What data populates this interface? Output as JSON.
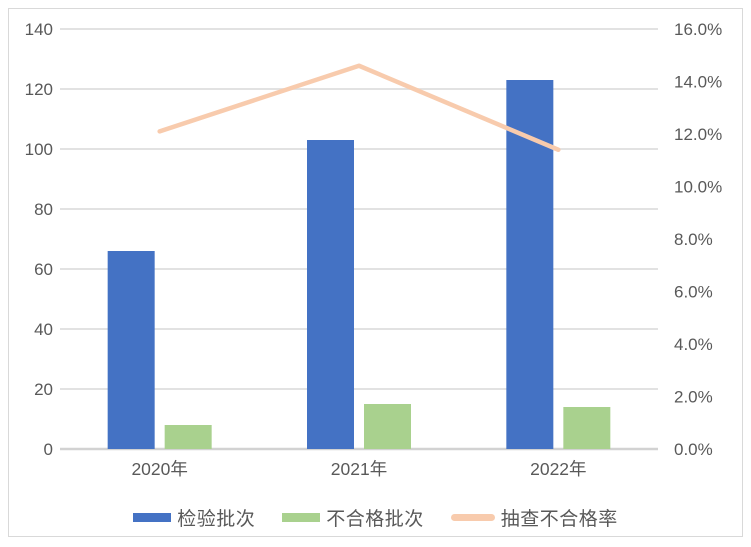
{
  "chart_data": {
    "type": "bar",
    "subtype": "bar-and-line-combo",
    "title": "",
    "xlabel": "",
    "ylabel": "",
    "categories": [
      "2020年",
      "2021年",
      "2022年"
    ],
    "series": [
      {
        "name": "检验批次",
        "type": "bar",
        "axis": "left",
        "values": [
          66,
          103,
          123
        ],
        "color": "#4472C4"
      },
      {
        "name": "不合格批次",
        "type": "bar",
        "axis": "left",
        "values": [
          8,
          15,
          14
        ],
        "color": "#A9D18E"
      },
      {
        "name": "抽查不合格率",
        "type": "line",
        "axis": "right",
        "values": [
          12.1,
          14.6,
          11.4
        ],
        "unit": "%",
        "color": "#F8CBAD"
      }
    ],
    "left_axis": {
      "min": 0,
      "max": 140,
      "step": 20,
      "ticks": [
        "140",
        "120",
        "100",
        "80",
        "60",
        "40",
        "20",
        "0"
      ]
    },
    "right_axis": {
      "min": 0,
      "max": 16,
      "step": 2,
      "ticks": [
        "16.0%",
        "14.0%",
        "12.0%",
        "10.0%",
        "8.0%",
        "6.0%",
        "4.0%",
        "2.0%",
        "0.0%"
      ]
    },
    "grid": true,
    "legend_position": "bottom",
    "colors": {
      "gridline": "#DEDEDE",
      "baseline": "#D2D2D2",
      "tick_text": "#595959",
      "category_text": "#595959",
      "frame_border": "#D9D9D9",
      "background": "#FFFFFF"
    }
  }
}
